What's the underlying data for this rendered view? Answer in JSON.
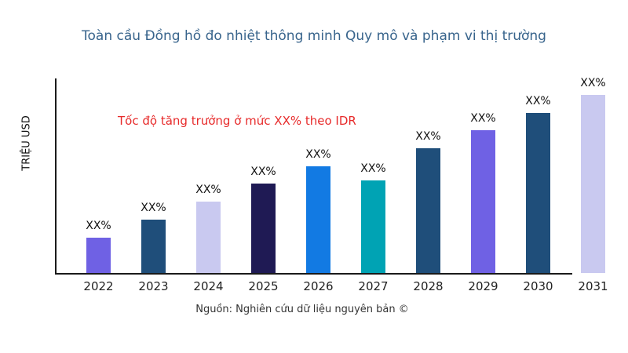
{
  "page": {
    "title": "Toàn cầu Đồng hồ đo nhiệt thông minh Quy mô và phạm vi thị trường",
    "title_color": "#38648c",
    "source": "Nguồn: Nghiên cứu dữ liệu nguyên bản ©"
  },
  "chart_data": {
    "type": "bar",
    "title": "Toàn cầu Đồng hồ đo nhiệt thông minh Quy mô và phạm vi thị trường",
    "ylabel": "TRIỆU USD",
    "xlabel": "",
    "annotation": "Tốc độ tăng trưởng ở mức XX% theo IDR",
    "annotation_color": "#e72a2a",
    "categories": [
      "2022",
      "2023",
      "2024",
      "2025",
      "2026",
      "2027",
      "2028",
      "2029",
      "2030",
      "2031"
    ],
    "values": [
      20,
      30,
      40,
      50,
      60,
      52,
      70,
      80,
      90,
      100
    ],
    "value_labels": [
      "XX%",
      "XX%",
      "XX%",
      "XX%",
      "XX%",
      "XX%",
      "XX%",
      "XX%",
      "XX%",
      "XX%"
    ],
    "bar_colors": [
      "#6f61e4",
      "#1f4e7a",
      "#c9c9f0",
      "#1f1a54",
      "#127ae3",
      "#00a3b4",
      "#1f4e7a",
      "#6f61e4",
      "#1f4e7a",
      "#c9c9f0"
    ],
    "ylim": [
      0,
      110
    ],
    "grid": false,
    "legend": false,
    "axis_color": "#1a1a1a"
  }
}
